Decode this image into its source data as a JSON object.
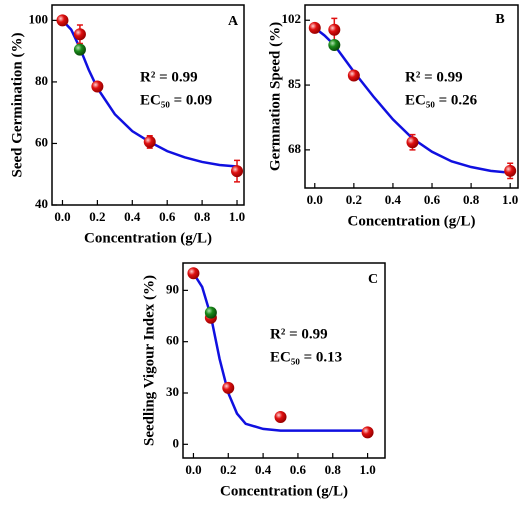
{
  "chart_data": [
    {
      "type": "scatter",
      "label": "A",
      "x_label": "Concentration (g/L)",
      "y_label": "Seed Germination (%)",
      "annotations": [
        "R² = 0.99",
        "EC₅₀ = 0.09"
      ],
      "xlim": [
        -0.06,
        1.04
      ],
      "ylim": [
        40,
        105
      ],
      "xticks": [
        {
          "value": 0,
          "label": "0.0"
        },
        {
          "value": 0.2,
          "label": "0.2"
        },
        {
          "value": 0.4,
          "label": "0.4"
        },
        {
          "value": 0.6,
          "label": "0.6"
        },
        {
          "value": 0.8,
          "label": "0.8"
        },
        {
          "value": 1,
          "label": "1.0"
        }
      ],
      "yticks": [
        40,
        60,
        80,
        100
      ],
      "series": [
        {
          "style": "line",
          "color": "#1010e0",
          "x": [
            0,
            0.05,
            0.1,
            0.15,
            0.2,
            0.3,
            0.4,
            0.5,
            0.6,
            0.7,
            0.8,
            0.9,
            1.0
          ],
          "values": [
            100,
            97,
            91,
            84,
            78,
            69.5,
            64,
            60.5,
            57.5,
            55.5,
            54,
            53,
            52.5
          ]
        },
        {
          "style": "marker",
          "color": "#e01010",
          "x": [
            0,
            0.1,
            0.2,
            0.5,
            1.0
          ],
          "values": [
            100,
            95.5,
            78.5,
            60.5,
            51
          ],
          "errors": [
            1,
            3,
            1,
            2,
            3.5
          ]
        },
        {
          "style": "marker",
          "color": "#1a8a1a",
          "x": [
            0.1
          ],
          "values": [
            90.5
          ]
        }
      ]
    },
    {
      "type": "scatter",
      "label": "B",
      "x_label": "Concentration (g/L)",
      "y_label": "Germnation Speed (%)",
      "annotations": [
        "R² = 0.99",
        "EC₅₀ = 0.26"
      ],
      "xlim": [
        -0.05,
        1.04
      ],
      "ylim": [
        58,
        106
      ],
      "xticks": [
        {
          "value": 0,
          "label": "0.0"
        },
        {
          "value": 0.2,
          "label": "0.2"
        },
        {
          "value": 0.4,
          "label": "0.4"
        },
        {
          "value": 0.6,
          "label": "0.6"
        },
        {
          "value": 0.8,
          "label": "0.8"
        },
        {
          "value": 1,
          "label": "1.0"
        }
      ],
      "yticks": [
        68,
        85,
        102
      ],
      "series": [
        {
          "style": "line",
          "color": "#1010e0",
          "x": [
            0,
            0.05,
            0.1,
            0.15,
            0.2,
            0.3,
            0.4,
            0.5,
            0.6,
            0.7,
            0.8,
            0.9,
            1.0
          ],
          "values": [
            100,
            98,
            95.5,
            92,
            88.5,
            82,
            76,
            71,
            67.5,
            65,
            63.5,
            62.5,
            62
          ]
        },
        {
          "style": "marker",
          "color": "#e01010",
          "x": [
            0,
            0.1,
            0.2,
            0.5,
            1.0
          ],
          "values": [
            100,
            99.5,
            87.5,
            70,
            62.5
          ],
          "errors": [
            1,
            3,
            1,
            2,
            2
          ]
        },
        {
          "style": "marker",
          "color": "#1a8a1a",
          "x": [
            0.1
          ],
          "values": [
            95.5
          ]
        }
      ]
    },
    {
      "type": "scatter",
      "label": "C",
      "x_label": "Concentration (g/L)",
      "y_label": "Seedling Vigour Index (%)",
      "annotations": [
        "R² = 0.99",
        "EC₅₀ = 0.13"
      ],
      "xlim": [
        -0.06,
        1.1
      ],
      "ylim": [
        -8,
        106
      ],
      "xticks": [
        {
          "value": 0,
          "label": "0.0"
        },
        {
          "value": 0.2,
          "label": "0.2"
        },
        {
          "value": 0.4,
          "label": "0.4"
        },
        {
          "value": 0.6,
          "label": "0.6"
        },
        {
          "value": 0.8,
          "label": "0.8"
        },
        {
          "value": 1,
          "label": "1.0"
        }
      ],
      "yticks": [
        0,
        30,
        60,
        90
      ],
      "series": [
        {
          "style": "line",
          "color": "#1010e0",
          "x": [
            0,
            0.05,
            0.1,
            0.15,
            0.2,
            0.25,
            0.3,
            0.4,
            0.5,
            0.7,
            1.0
          ],
          "values": [
            100,
            92,
            75,
            50,
            30,
            18,
            12,
            9,
            8,
            8,
            8
          ]
        },
        {
          "style": "marker",
          "color": "#e01010",
          "x": [
            0,
            0.1,
            0.2,
            0.5,
            1.0
          ],
          "values": [
            100,
            74,
            33,
            16,
            7
          ],
          "errors": [
            1.5,
            1.5,
            1.5,
            1.5,
            1.5
          ]
        },
        {
          "style": "marker",
          "color": "#1a8a1a",
          "x": [
            0.1
          ],
          "values": [
            77
          ]
        }
      ]
    }
  ]
}
